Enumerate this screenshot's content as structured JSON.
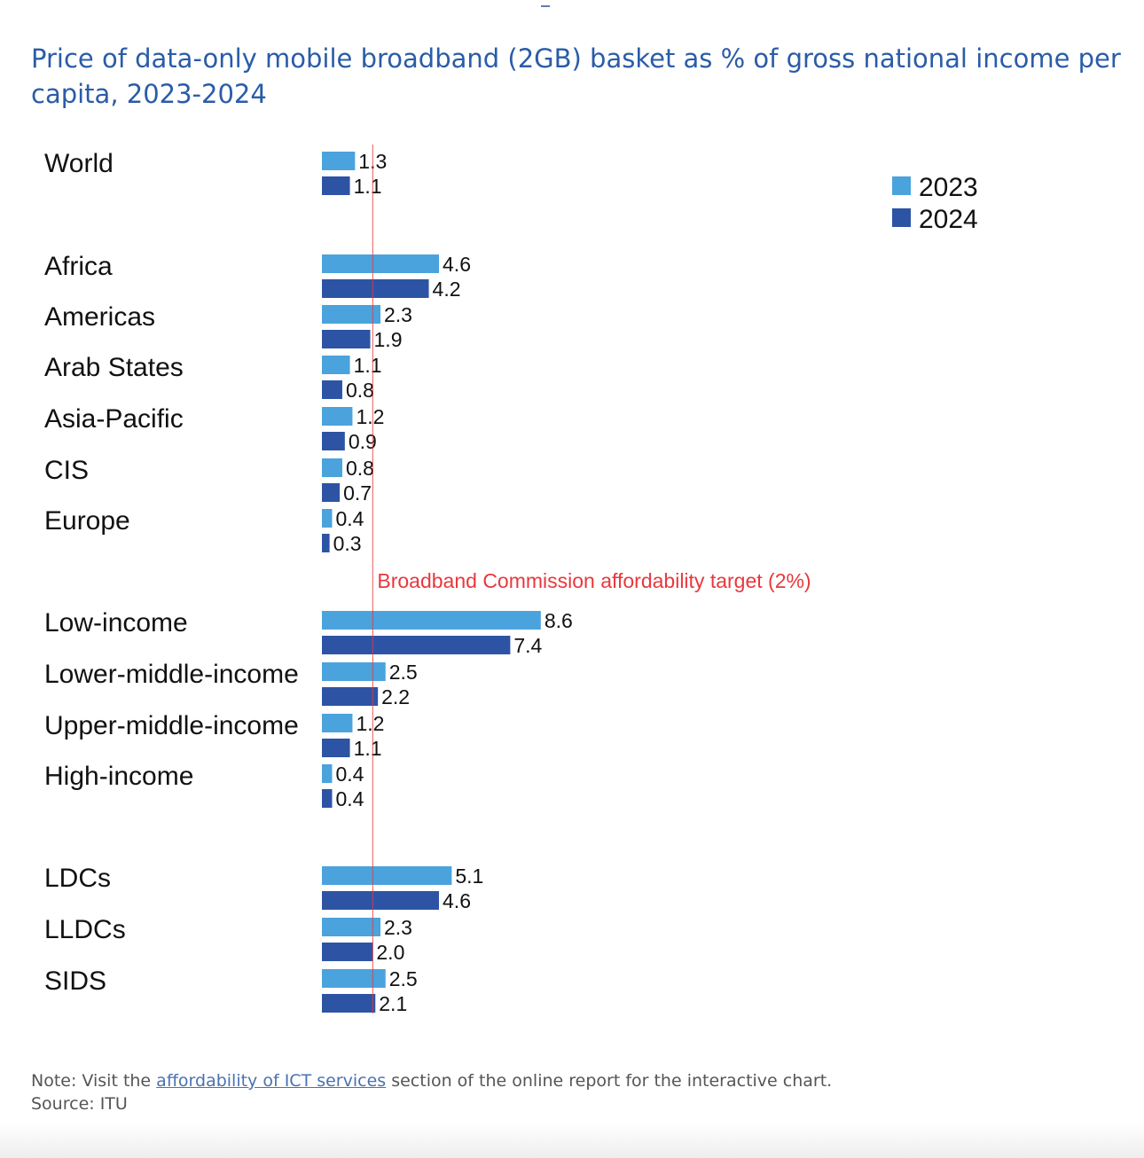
{
  "chart_data": {
    "type": "bar",
    "orientation": "horizontal",
    "title": "Price of data-only mobile broadband (2GB) basket as % of gross national income per capita, 2023-2024",
    "xlabel": "",
    "ylabel": "",
    "xlim": [
      0,
      9.5
    ],
    "grid": false,
    "legend_position": "top-right",
    "colors": {
      "2023": "#4aa3dc",
      "2024": "#2d54a4",
      "target": "#e8383d"
    },
    "series": [
      {
        "name": "2023",
        "values": [
          1.3,
          4.6,
          2.3,
          1.1,
          1.2,
          0.8,
          0.4,
          8.6,
          2.5,
          1.2,
          0.4,
          5.1,
          2.3,
          2.5
        ]
      },
      {
        "name": "2024",
        "values": [
          1.1,
          4.2,
          1.9,
          0.8,
          0.9,
          0.7,
          0.3,
          7.4,
          2.2,
          1.1,
          0.4,
          4.6,
          2.0,
          2.1
        ]
      }
    ],
    "categories": [
      "World",
      "Africa",
      "Americas",
      "Arab States",
      "Asia-Pacific",
      "CIS",
      "Europe",
      "Low-income",
      "Lower-middle-income",
      "Upper-middle-income",
      "High-income",
      "LDCs",
      "LLDCs",
      "SIDS"
    ],
    "value_labels": {
      "2023": [
        "1.3",
        "4.6",
        "2.3",
        "1.1",
        "1.2",
        "0.8",
        "0.4",
        "8.6",
        "2.5",
        "1.2",
        "0.4",
        "5.1",
        "2.3",
        "2.5"
      ],
      "2024": [
        "1.1",
        "4.2",
        "1.9",
        "0.8",
        "0.9",
        "0.7",
        "0.3",
        "7.4",
        "2.2",
        "1.1",
        "0.4",
        "4.6",
        "2.0",
        "2.1"
      ]
    },
    "reference_line": {
      "value": 2,
      "label": "Broadband Commission affordability target (2%)"
    }
  },
  "footer": {
    "note_prefix": "Note: Visit the ",
    "note_link": "affordability of ICT services",
    "note_suffix": " section of the online report for the interactive chart.",
    "source": "Source: ITU"
  }
}
